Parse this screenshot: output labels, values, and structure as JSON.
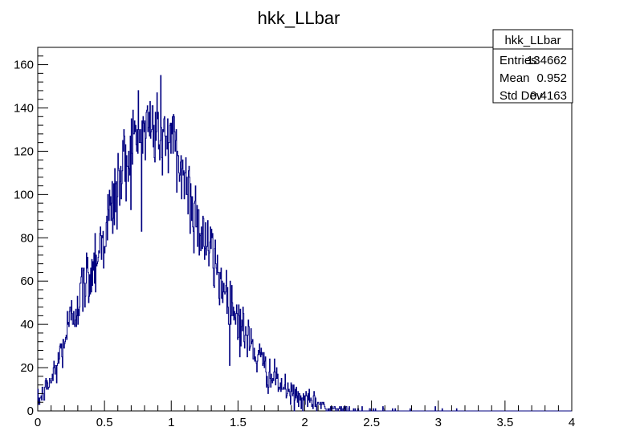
{
  "chart_data": {
    "type": "histogram",
    "title": "hkk_LLbar",
    "xlabel": "",
    "ylabel": "",
    "xlim": [
      0,
      4
    ],
    "ylim": [
      0,
      168
    ],
    "x_ticks": [
      "0",
      "0.5",
      "1",
      "1.5",
      "2",
      "2.5",
      "3",
      "3.5",
      "4"
    ],
    "y_ticks": [
      "0",
      "20",
      "40",
      "60",
      "80",
      "100",
      "120",
      "140",
      "160"
    ],
    "grid": false,
    "line_color": "#000080",
    "bin_range": [
      0,
      4
    ],
    "profile": [
      [
        0.0,
        4
      ],
      [
        0.05,
        9
      ],
      [
        0.1,
        14
      ],
      [
        0.15,
        22
      ],
      [
        0.2,
        33
      ],
      [
        0.25,
        42
      ],
      [
        0.3,
        51
      ],
      [
        0.35,
        58
      ],
      [
        0.4,
        65
      ],
      [
        0.45,
        74
      ],
      [
        0.5,
        82
      ],
      [
        0.55,
        92
      ],
      [
        0.6,
        104
      ],
      [
        0.65,
        114
      ],
      [
        0.7,
        122
      ],
      [
        0.75,
        127
      ],
      [
        0.8,
        130
      ],
      [
        0.85,
        131
      ],
      [
        0.9,
        130
      ],
      [
        0.95,
        128
      ],
      [
        1.0,
        124
      ],
      [
        1.05,
        117
      ],
      [
        1.1,
        108
      ],
      [
        1.15,
        98
      ],
      [
        1.2,
        88
      ],
      [
        1.25,
        80
      ],
      [
        1.3,
        72
      ],
      [
        1.35,
        64
      ],
      [
        1.4,
        56
      ],
      [
        1.45,
        49
      ],
      [
        1.5,
        43
      ],
      [
        1.55,
        36
      ],
      [
        1.6,
        30
      ],
      [
        1.65,
        25
      ],
      [
        1.7,
        20
      ],
      [
        1.75,
        16
      ],
      [
        1.8,
        13
      ],
      [
        1.85,
        10
      ],
      [
        1.9,
        8
      ],
      [
        1.95,
        6
      ],
      [
        2.0,
        5
      ],
      [
        2.1,
        3.5
      ],
      [
        2.2,
        2.5
      ],
      [
        2.3,
        1.8
      ],
      [
        2.4,
        1.2
      ],
      [
        2.6,
        0.6
      ],
      [
        2.8,
        0.3
      ],
      [
        3.0,
        0.15
      ],
      [
        3.3,
        0.05
      ],
      [
        3.5,
        0
      ],
      [
        4.0,
        0
      ]
    ]
  },
  "stats_box": {
    "title": "hkk_LLbar",
    "rows": [
      {
        "label": "Entries",
        "value": "134662"
      },
      {
        "label": "Mean",
        "value": "0.952"
      },
      {
        "label": "Std Dev",
        "value": "0.4163"
      }
    ]
  }
}
